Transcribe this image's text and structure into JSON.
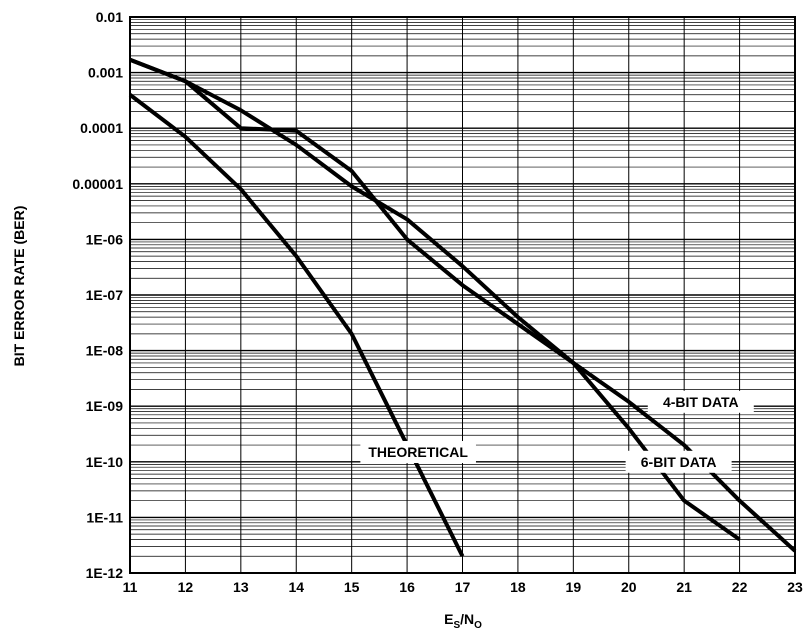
{
  "chart_data": {
    "type": "line",
    "title": "",
    "ylabel": "BIT ERROR RATE (BER)",
    "xlabel": {
      "main": "E",
      "sub1": "S",
      "sep": "/N",
      "sub2": "O"
    },
    "xlim": [
      11,
      23
    ],
    "ylim": [
      1e-12,
      0.01
    ],
    "yscale": "log",
    "grid": "on (major and minor)",
    "x_ticks": [
      "11",
      "12",
      "13",
      "14",
      "15",
      "16",
      "17",
      "18",
      "19",
      "20",
      "21",
      "22",
      "23"
    ],
    "y_ticks": [
      "0.01",
      "0.001",
      "0.0001",
      "0.00001",
      "1E-06",
      "1E-07",
      "1E-08",
      "1E-09",
      "1E-10",
      "1E-11",
      "1E-12"
    ],
    "series": [
      {
        "name": "THEORETICAL",
        "x": [
          11,
          12,
          13,
          14,
          15,
          16,
          17
        ],
        "y": [
          0.0004,
          7e-05,
          8e-06,
          5e-07,
          2e-08,
          2e-10,
          2e-12
        ]
      },
      {
        "name": "6-BIT DATA",
        "x": [
          11,
          12,
          13,
          14,
          15,
          16,
          17,
          18,
          19,
          20,
          21,
          22
        ],
        "y": [
          0.0017,
          0.0007,
          0.0001,
          9e-05,
          1.7e-05,
          1e-06,
          1.5e-07,
          3e-08,
          6e-09,
          4e-10,
          2e-11,
          4e-12
        ]
      },
      {
        "name": "4-BIT DATA",
        "x": [
          11,
          12,
          13,
          14,
          15,
          16,
          17,
          18,
          19,
          20,
          21,
          22,
          23
        ],
        "y": [
          0.0017,
          0.0007,
          0.00021,
          5e-05,
          9e-06,
          2.3e-06,
          3.3e-07,
          4e-08,
          6e-09,
          1.2e-09,
          2e-10,
          2e-11,
          2.5e-12
        ]
      }
    ]
  }
}
